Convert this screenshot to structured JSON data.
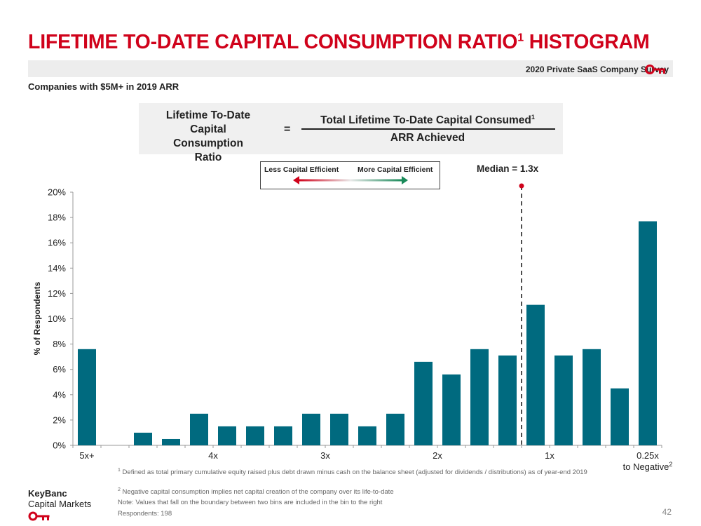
{
  "header": {
    "title": "LIFETIME TO-DATE CAPITAL CONSUMPTION RATIO",
    "title_sup": "1",
    "title_tail": " HISTOGRAM",
    "survey": "2020 Private SaaS Company Survey",
    "subtitle": "Companies with $5M+ in 2019 ARR",
    "brand_color": "#d0021b"
  },
  "formula": {
    "left_line1": "Lifetime To-Date",
    "left_line2": "Capital Consumption",
    "left_line3": "Ratio",
    "equals": "=",
    "numerator": "Total Lifetime To-Date Capital Consumed",
    "numerator_sup": "1",
    "denominator": "ARR Achieved"
  },
  "efficiency": {
    "less": "Less Capital Efficient",
    "more": "More Capital Efficient"
  },
  "median_label": "Median = 1.3x",
  "chart_data": {
    "type": "bar",
    "ylabel": "% of Respondents",
    "ylim": [
      0,
      20
    ],
    "yticks": [
      "0%",
      "2%",
      "4%",
      "6%",
      "8%",
      "10%",
      "12%",
      "14%",
      "16%",
      "18%",
      "20%"
    ],
    "bar_color": "#006a7f",
    "values": [
      7.6,
      0,
      1.0,
      0.5,
      2.5,
      1.5,
      1.5,
      1.5,
      2.5,
      2.5,
      1.5,
      2.5,
      6.6,
      5.6,
      7.6,
      7.1,
      11.1,
      7.1,
      7.6,
      4.5,
      17.7
    ],
    "x_tick_labels": [
      {
        "bin": 0,
        "label": "5x+"
      },
      {
        "bin": 4.5,
        "label": "4x"
      },
      {
        "bin": 8.5,
        "label": "3x"
      },
      {
        "bin": 12.5,
        "label": "2x"
      },
      {
        "bin": 16.5,
        "label": "1x"
      },
      {
        "bin": 20,
        "label": "0.25x",
        "label2": "to Negative",
        "sup": "2"
      }
    ],
    "median_bin": 15.5
  },
  "footnotes": {
    "fn1_sup": "1",
    "fn1": " Defined as total primary cumulative equity raised plus debt drawn minus cash on the balance sheet (adjusted for dividends / distributions) as of year-end 2019",
    "fn2_sup": "2",
    "fn2": " Negative capital consumption implies net capital creation of the company over its life-to-date",
    "note": "Note: Values that fall on the boundary between two bins are included in the bin to the right",
    "respondents": "Respondents: 198"
  },
  "logo": {
    "line1": "KeyBanc",
    "line2": "Capital Markets"
  },
  "page_number": "42"
}
